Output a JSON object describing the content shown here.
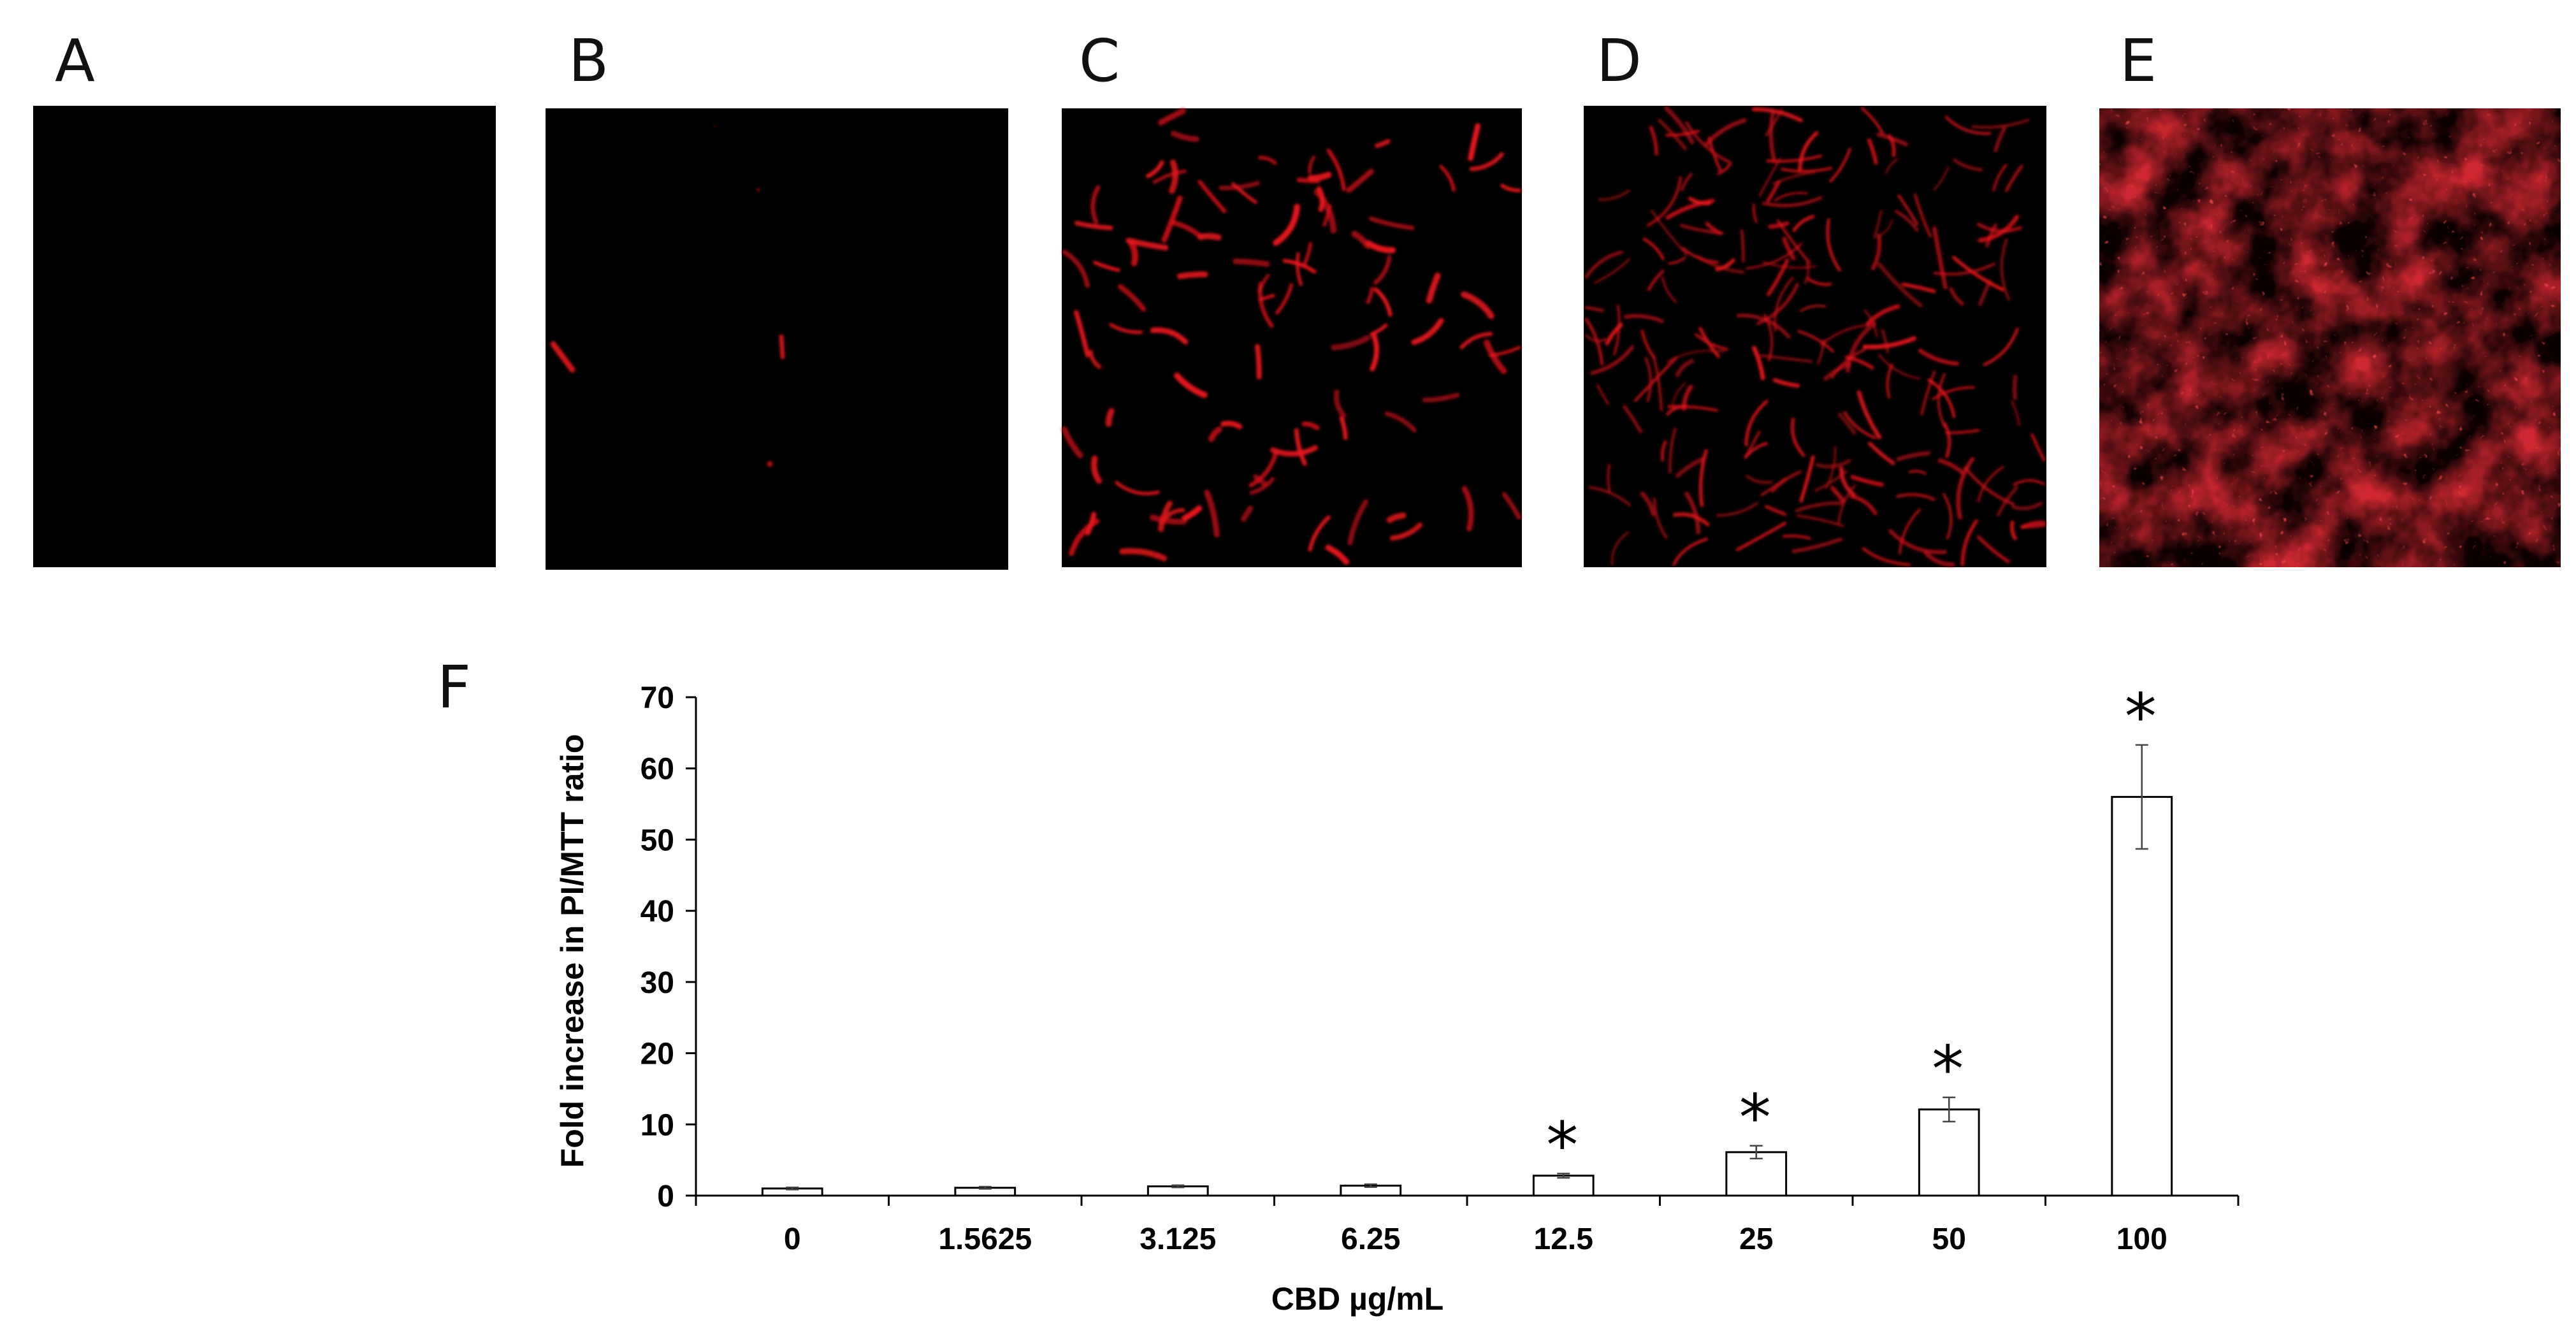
{
  "panels": [
    {
      "label": "A"
    },
    {
      "label": "B"
    },
    {
      "label": "C"
    },
    {
      "label": "D"
    },
    {
      "label": "E"
    }
  ],
  "chart_label": "F",
  "colors": {
    "background": "#ffffff",
    "micrograph_black": "#000000",
    "pi_red": "#e8141c",
    "bar_fill": "#ffffff",
    "bar_stroke": "#000000"
  },
  "chart_data": {
    "type": "bar",
    "title": "",
    "xlabel": "CBD µg/mL",
    "ylabel": "Fold increase in PI/MTT ratio",
    "categories": [
      "0",
      "1.5625",
      "3.125",
      "6.25",
      "12.5",
      "25",
      "50",
      "100"
    ],
    "values": [
      1,
      1.1,
      1.3,
      1.4,
      2.8,
      6.1,
      12.1,
      56
    ],
    "errors": [
      0.15,
      0.15,
      0.15,
      0.2,
      0.3,
      0.9,
      1.7,
      7.3
    ],
    "significance": [
      "",
      "",
      "",
      "",
      "*",
      "*",
      "*",
      "*"
    ],
    "ylim": [
      0,
      70
    ],
    "yticks": [
      "0",
      "10",
      "20",
      "30",
      "40",
      "50",
      "60",
      "70"
    ],
    "grid": false,
    "legend": "none"
  }
}
